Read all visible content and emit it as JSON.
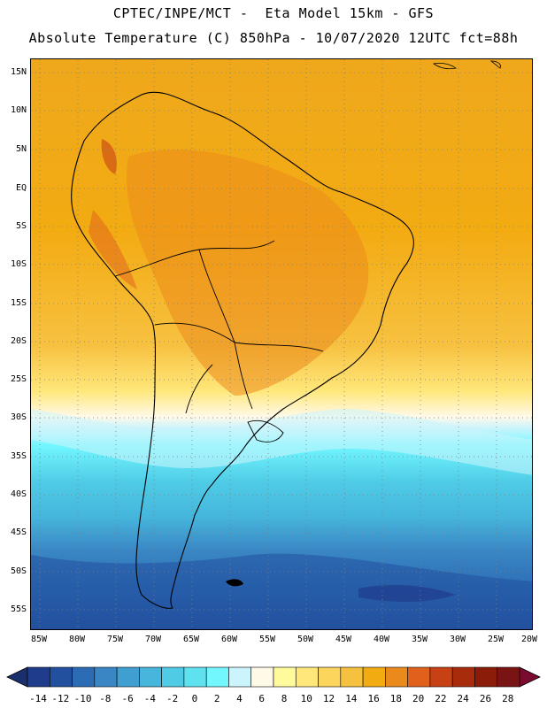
{
  "header": {
    "line1": "CPTEC/INPE/MCT -  Eta Model 15km - GFS",
    "line2": "Absolute Temperature (C) 850hPa - 10/07/2020 12UTC fct=88h"
  },
  "map": {
    "lat_labels": [
      "15N",
      "10N",
      "5N",
      "EQ",
      "5S",
      "10S",
      "15S",
      "20S",
      "25S",
      "30S",
      "35S",
      "40S",
      "45S",
      "50S",
      "55S"
    ],
    "lon_labels": [
      "85W",
      "80W",
      "75W",
      "70W",
      "65W",
      "60W",
      "55W",
      "50W",
      "45W",
      "40W",
      "35W",
      "30W",
      "25W",
      "20W"
    ]
  },
  "colorbar": {
    "labels": [
      "-14",
      "-12",
      "-10",
      "-8",
      "-6",
      "-4",
      "-2",
      "0",
      "2",
      "4",
      "6",
      "8",
      "10",
      "12",
      "14",
      "16",
      "18",
      "20",
      "22",
      "24",
      "26",
      "28"
    ],
    "colors": [
      "#1f3c8c",
      "#23509e",
      "#2b6cb4",
      "#3a86c4",
      "#3f9fd0",
      "#46b6dc",
      "#4fcbe6",
      "#5fe2f0",
      "#72f7ff",
      "#ccf4fc",
      "#fff9e8",
      "#fffa9c",
      "#ffe77a",
      "#fcd55c",
      "#f7c140",
      "#f3ab12",
      "#eb8a1c",
      "#e0601c",
      "#c84114",
      "#a82c0c",
      "#8c1c0a",
      "#7a1414"
    ],
    "under_color": "#1a2f6e",
    "over_color": "#7a0a30"
  }
}
